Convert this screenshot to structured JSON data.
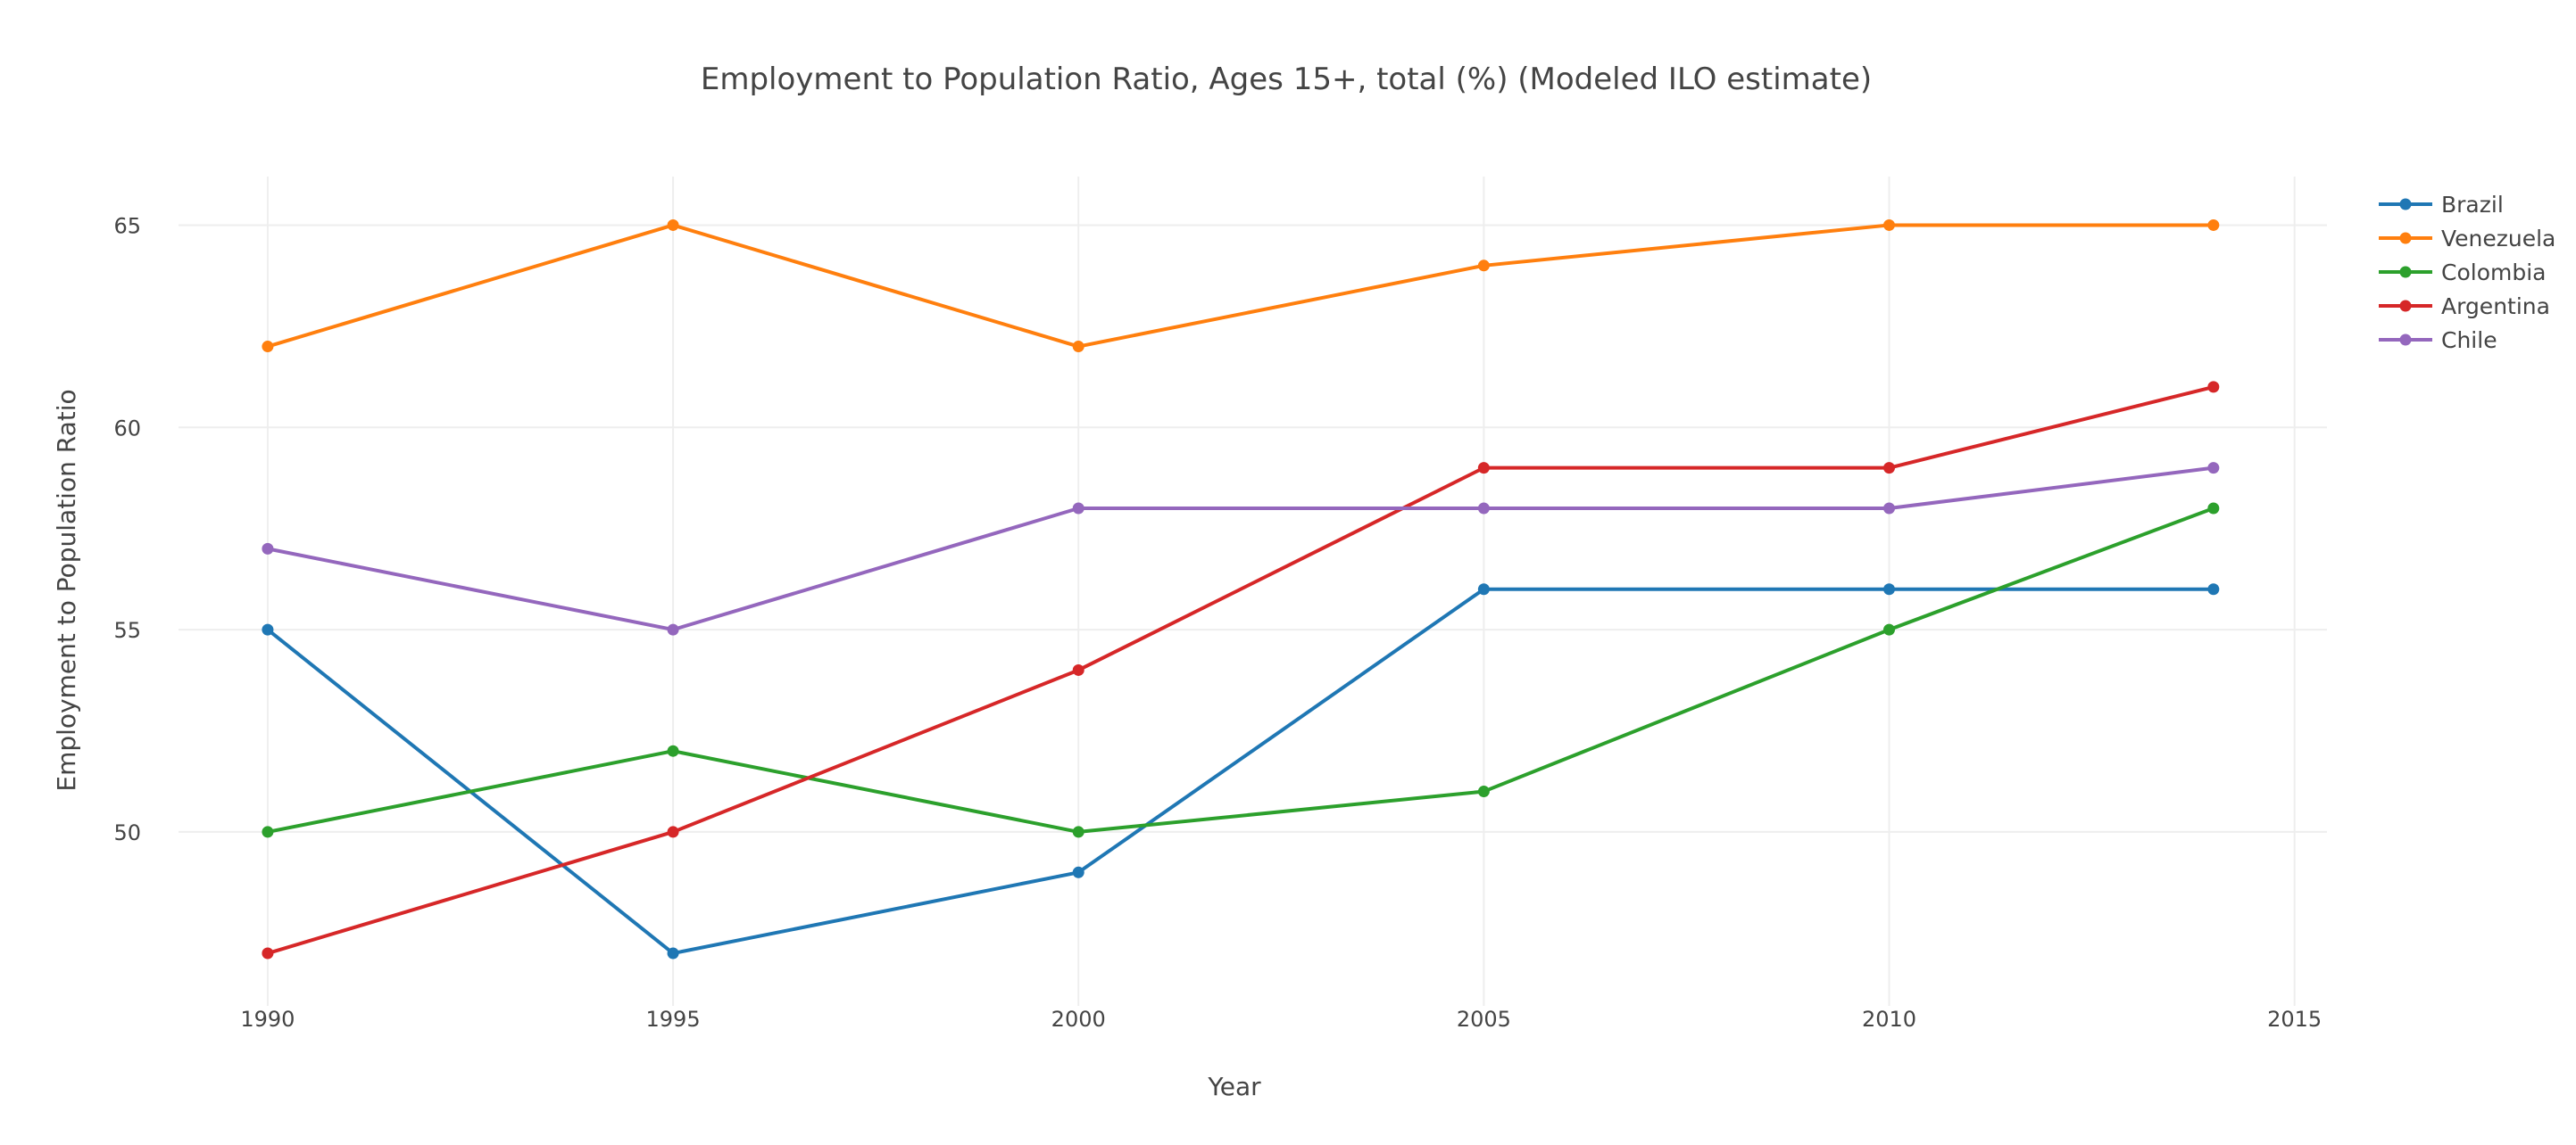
{
  "chart_data": {
    "type": "line",
    "title": "Employment to Population Ratio, Ages 15+, total (%) (Modeled ILO estimate)",
    "xlabel": "Year",
    "ylabel": "Employment to Population Ratio",
    "x": [
      1990,
      1995,
      2000,
      2005,
      2010,
      2014
    ],
    "x_ticks": [
      "1990",
      "1995",
      "2000",
      "2005",
      "2010",
      "2015"
    ],
    "y_ticks": [
      "50",
      "55",
      "60",
      "65"
    ],
    "xlim": [
      1988.9,
      2015.4
    ],
    "ylim": [
      45.7,
      66.2
    ],
    "grid": true,
    "legend_position": "top-right",
    "series": [
      {
        "name": "Brazil",
        "color": "#1f77b4",
        "values": [
          55,
          47,
          49,
          56,
          56,
          56
        ]
      },
      {
        "name": "Venezuela",
        "color": "#ff7f0e",
        "values": [
          62,
          65,
          62,
          64,
          65,
          65
        ]
      },
      {
        "name": "Colombia",
        "color": "#2ca02c",
        "values": [
          50,
          52,
          50,
          51,
          55,
          58
        ]
      },
      {
        "name": "Argentina",
        "color": "#d62728",
        "values": [
          47,
          50,
          54,
          59,
          59,
          61
        ]
      },
      {
        "name": "Chile",
        "color": "#9467bd",
        "values": [
          57,
          55,
          58,
          58,
          58,
          59
        ]
      }
    ]
  }
}
